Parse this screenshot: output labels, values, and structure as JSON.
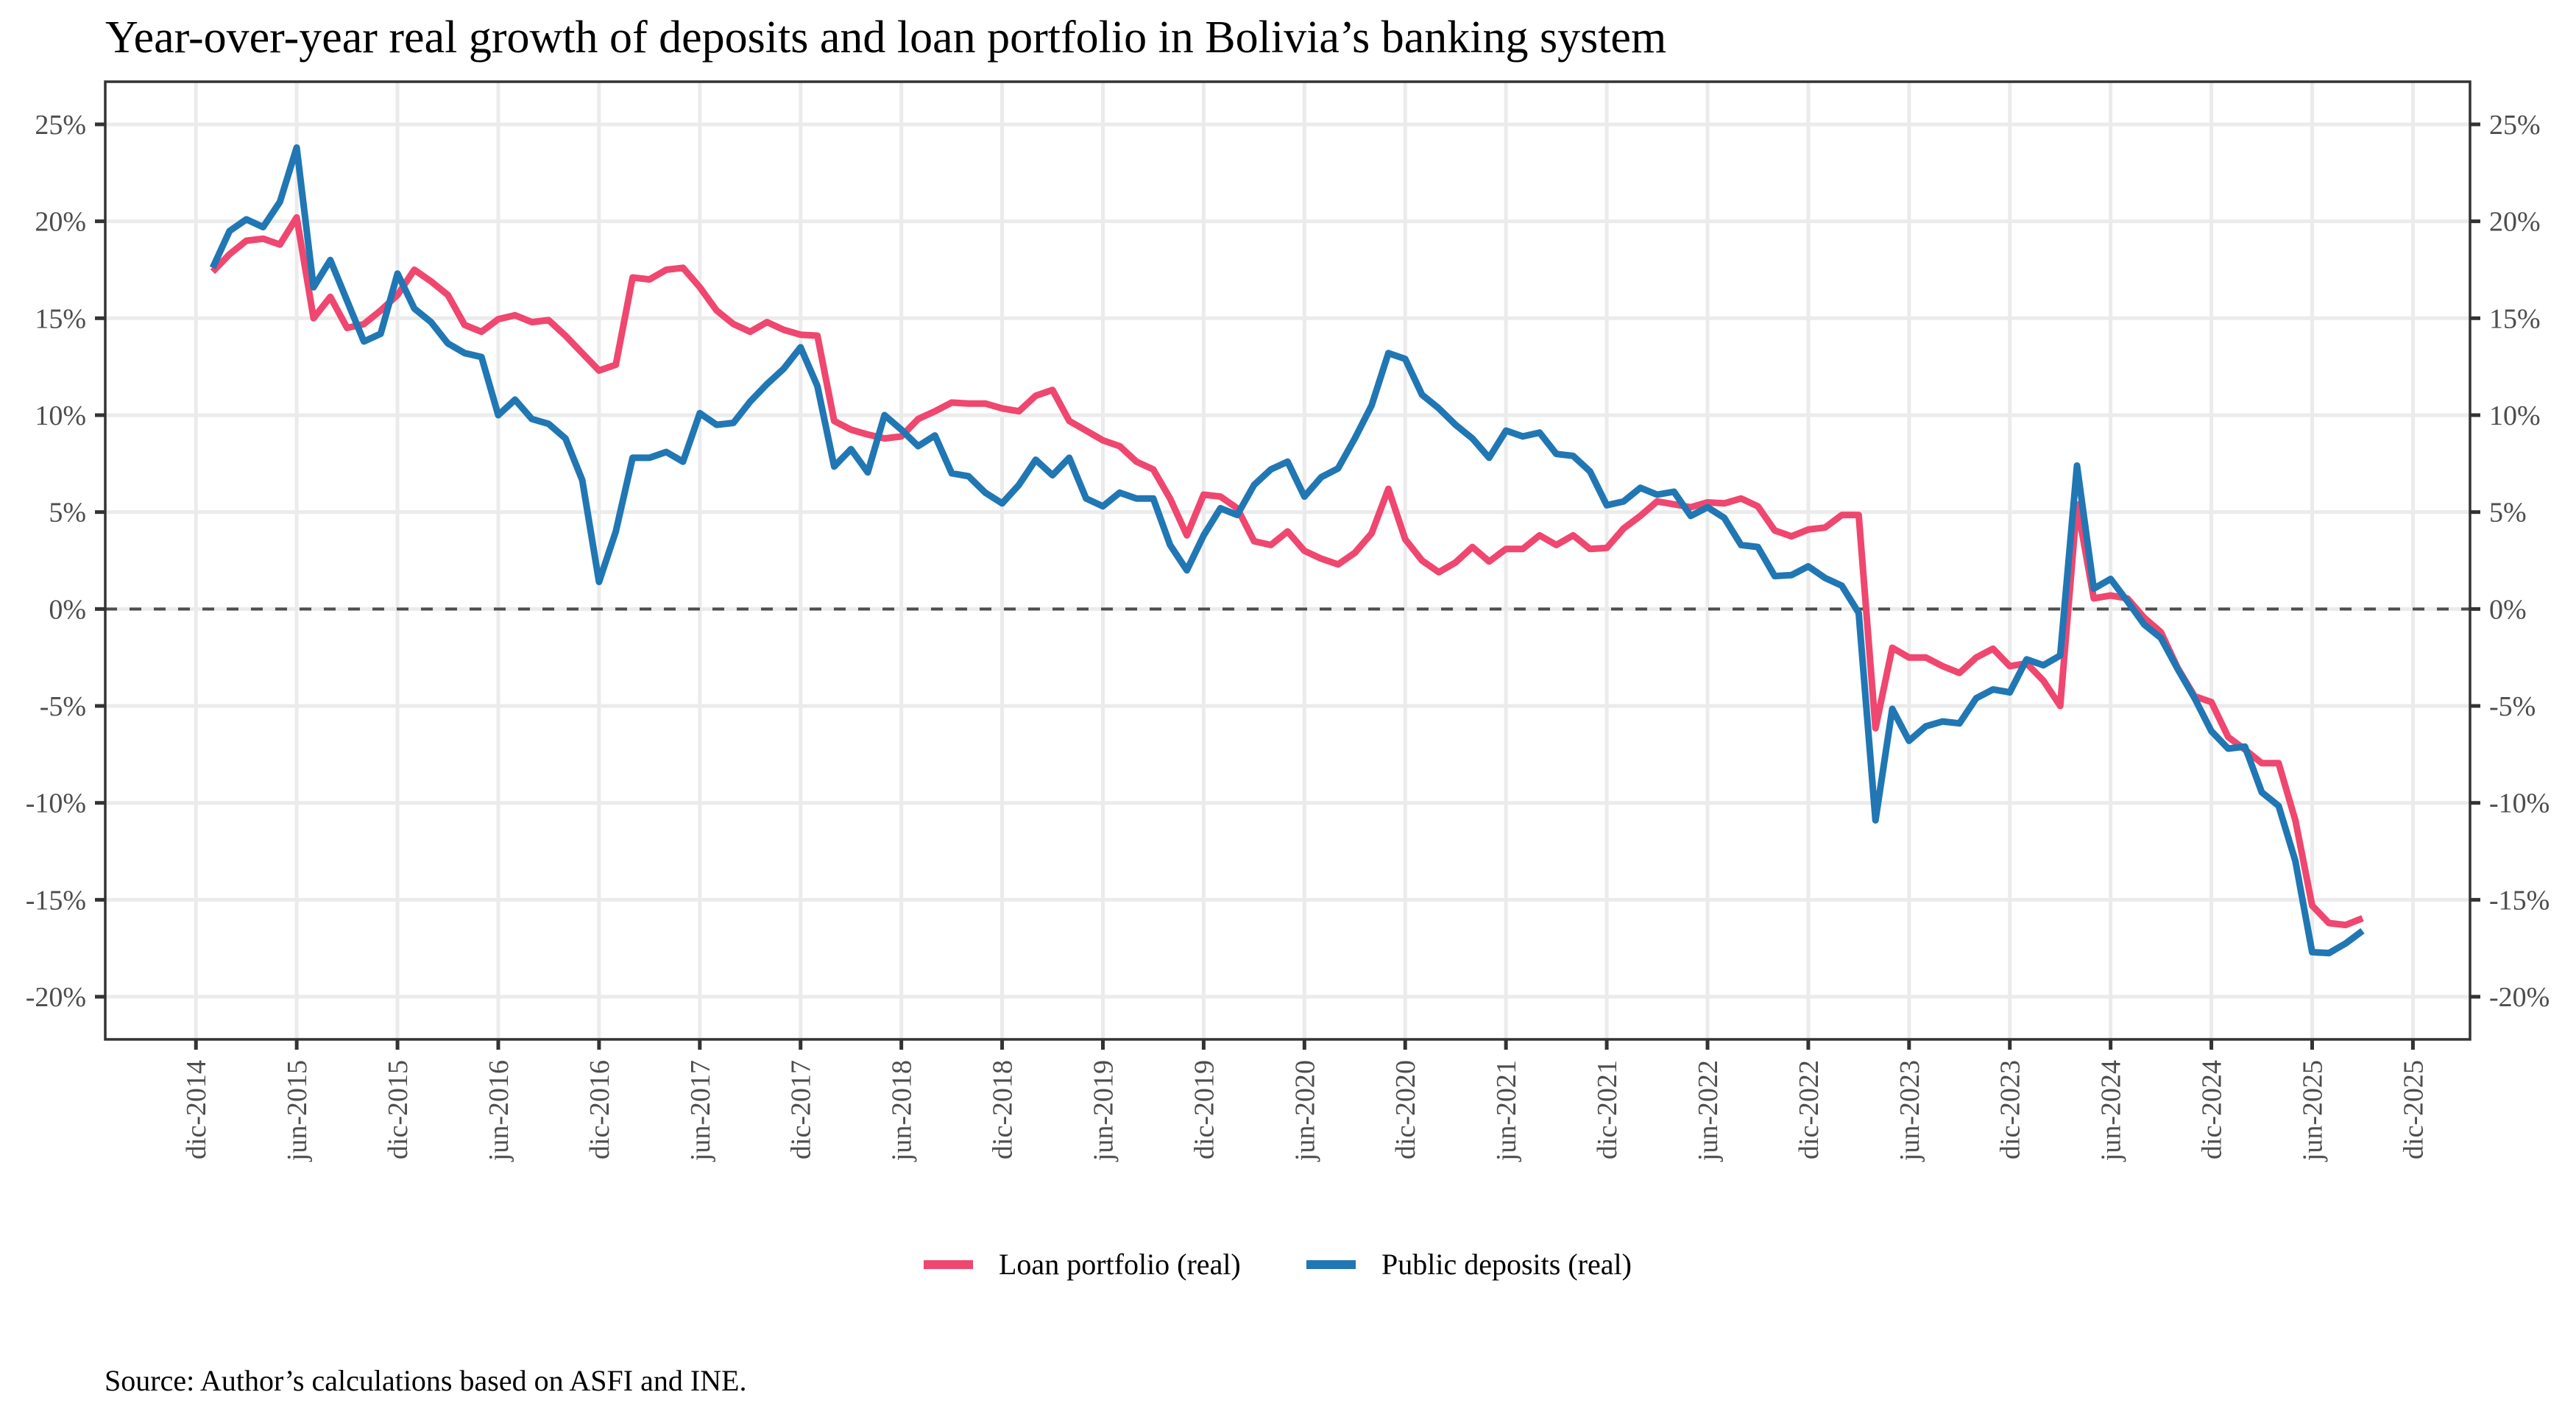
{
  "chart_data": {
    "type": "line",
    "title": "Year-over-year real growth of deposits and loan portfolio in Bolivia’s banking system",
    "caption": "Source: Author’s calculations based on ASFI and INE.",
    "xlabel": "",
    "ylabel": "",
    "x_start": "2015-01",
    "x_end": "2025-09",
    "frequency": "monthly",
    "x_tick_labels": [
      "dic-2014",
      "jun-2015",
      "dic-2015",
      "jun-2016",
      "dic-2016",
      "jun-2017",
      "dic-2017",
      "jun-2018",
      "dic-2018",
      "jun-2019",
      "dic-2019",
      "jun-2020",
      "dic-2020",
      "jun-2021",
      "dic-2021",
      "jun-2022",
      "dic-2022",
      "jun-2023",
      "dic-2023",
      "jun-2024",
      "dic-2024",
      "jun-2025",
      "dic-2025"
    ],
    "y_ticks": [
      -20,
      -15,
      -10,
      -5,
      0,
      5,
      10,
      15,
      20,
      25
    ],
    "y_tick_labels": [
      "-20%",
      "-15%",
      "-10%",
      "-5%",
      "0%",
      "5%",
      "10%",
      "15%",
      "20%",
      "25%"
    ],
    "y_unit": "%",
    "ylim": [
      -22.2,
      27.2
    ],
    "xlim_months_from_dec2014": [
      -5.4,
      135.4
    ],
    "reference_line": {
      "y": 0,
      "style": "dashed",
      "color": "#4d4d4d"
    },
    "secondary_y_axis": "mirror",
    "grid": true,
    "legend_position": "bottom",
    "series": [
      {
        "name": "Loan portfolio (real)",
        "color": "#ef476f",
        "values": [
          17.4,
          18.3,
          19.0,
          19.1,
          18.8,
          20.2,
          15.0,
          16.1,
          14.5,
          14.7,
          15.4,
          16.2,
          17.5,
          16.9,
          16.2,
          14.65,
          14.3,
          14.95,
          15.15,
          14.8,
          14.9,
          14.1,
          13.2,
          12.3,
          12.6,
          17.1,
          17.0,
          17.5,
          17.6,
          16.6,
          15.4,
          14.7,
          14.3,
          14.8,
          14.4,
          14.15,
          14.1,
          9.7,
          9.25,
          9.0,
          8.8,
          8.9,
          9.8,
          10.2,
          10.65,
          10.6,
          10.6,
          10.35,
          10.2,
          11.0,
          11.3,
          9.7,
          9.2,
          8.7,
          8.4,
          7.6,
          7.2,
          5.7,
          3.8,
          5.9,
          5.8,
          5.2,
          3.5,
          3.3,
          4.0,
          3.0,
          2.6,
          2.3,
          2.9,
          3.9,
          6.2,
          3.6,
          2.5,
          1.9,
          2.4,
          3.2,
          2.45,
          3.1,
          3.1,
          3.8,
          3.3,
          3.8,
          3.1,
          3.15,
          4.15,
          4.8,
          5.55,
          5.4,
          5.25,
          5.5,
          5.45,
          5.7,
          5.3,
          4.05,
          3.75,
          4.1,
          4.2,
          4.85,
          4.85,
          -6.15,
          -2.0,
          -2.5,
          -2.5,
          -2.95,
          -3.3,
          -2.5,
          -2.05,
          -2.95,
          -2.8,
          -3.7,
          -5.0,
          5.4,
          0.55,
          0.7,
          0.55,
          -0.45,
          -1.2,
          -3.05,
          -4.5,
          -4.8,
          -6.6,
          -7.25,
          -7.95,
          -7.95,
          -10.9,
          -15.3,
          -16.2,
          -16.3,
          -15.95
        ]
      },
      {
        "name": "Public deposits (real)",
        "color": "#2077b4",
        "values": [
          17.6,
          19.5,
          20.1,
          19.7,
          21.0,
          23.8,
          16.6,
          18.0,
          15.9,
          13.8,
          14.2,
          17.3,
          15.5,
          14.8,
          13.7,
          13.2,
          13.0,
          10.0,
          10.8,
          9.8,
          9.55,
          8.8,
          6.65,
          1.4,
          4.0,
          7.8,
          7.8,
          8.1,
          7.6,
          10.1,
          9.5,
          9.6,
          10.7,
          11.6,
          12.4,
          13.5,
          11.5,
          7.35,
          8.25,
          7.05,
          10.0,
          9.25,
          8.4,
          8.95,
          7.0,
          6.85,
          6.0,
          5.45,
          6.4,
          7.7,
          6.9,
          7.8,
          5.7,
          5.3,
          6.0,
          5.7,
          5.7,
          3.3,
          2.0,
          3.8,
          5.2,
          4.85,
          6.4,
          7.2,
          7.6,
          5.8,
          6.8,
          7.25,
          8.8,
          10.5,
          13.2,
          12.9,
          11.05,
          10.35,
          9.5,
          8.8,
          7.8,
          9.2,
          8.9,
          9.1,
          8.0,
          7.9,
          7.1,
          5.35,
          5.55,
          6.25,
          5.9,
          6.05,
          4.8,
          5.25,
          4.7,
          3.3,
          3.2,
          1.7,
          1.75,
          2.2,
          1.6,
          1.2,
          -0.2,
          -10.9,
          -5.15,
          -6.8,
          -6.05,
          -5.8,
          -5.9,
          -4.6,
          -4.15,
          -4.3,
          -2.6,
          -2.9,
          -2.4,
          7.4,
          1.05,
          1.55,
          0.4,
          -0.8,
          -1.5,
          -3.1,
          -4.6,
          -6.3,
          -7.2,
          -7.1,
          -9.45,
          -10.15,
          -13.0,
          -17.7,
          -17.75,
          -17.25,
          -16.6
        ]
      }
    ]
  }
}
